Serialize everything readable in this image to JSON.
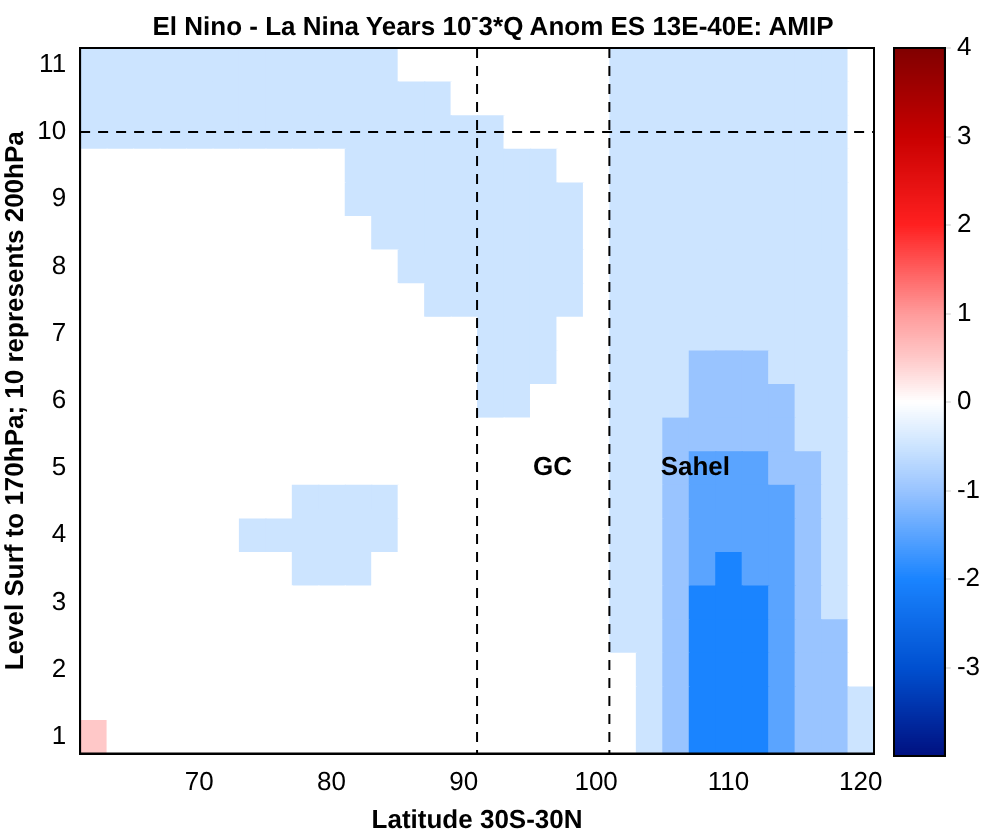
{
  "chart_data": {
    "type": "heatmap",
    "title": "El Nino - La Nina  Years 10$^{-}$3*Q Anom ES 13E-40E: AMIP",
    "xlabel": "Latitude 30S-30N",
    "ylabel": "Level Surf to 170hPa; 10 represents 200hPa",
    "categories": [
      null,
      null,
      null,
      null,
      "70",
      null,
      null,
      null,
      null,
      "80",
      null,
      null,
      null,
      null,
      "90",
      null,
      null,
      null,
      null,
      "100",
      null,
      null,
      null,
      null,
      "110",
      null,
      null,
      null,
      null,
      "120"
    ],
    "y_categories": [
      "11",
      null,
      "10",
      null,
      "9",
      null,
      "8",
      null,
      "7",
      null,
      "6",
      null,
      "5",
      null,
      "4",
      null,
      "3",
      null,
      "2",
      null,
      "1"
    ],
    "clim": [
      -4,
      4
    ],
    "cticks": [
      -3,
      -2,
      -1,
      0,
      1,
      2,
      3,
      4
    ],
    "cells": [
      [
        -0.5,
        -0.5,
        -0.5,
        -0.5,
        -0.5,
        -0.5,
        -0.5,
        -0.5,
        -0.5,
        -0.5,
        -0.5,
        -0.5,
        0,
        0,
        0,
        0,
        0,
        0,
        0,
        0,
        -0.5,
        -0.5,
        -0.5,
        -0.5,
        -0.5,
        -0.5,
        -0.5,
        -0.5,
        -0.5,
        0
      ],
      [
        -0.5,
        -0.5,
        -0.5,
        -0.5,
        -0.5,
        -0.5,
        -0.5,
        -0.5,
        -0.5,
        -0.5,
        -0.5,
        -0.5,
        -0.5,
        -0.5,
        0,
        0,
        0,
        0,
        0,
        0,
        -0.5,
        -0.5,
        -0.5,
        -0.5,
        -0.5,
        -0.5,
        -0.5,
        -0.5,
        -0.5,
        0
      ],
      [
        -0.5,
        -0.5,
        -0.5,
        -0.5,
        -0.5,
        -0.5,
        -0.5,
        -0.5,
        -0.5,
        -0.5,
        -0.5,
        -0.5,
        -0.5,
        -0.5,
        -0.5,
        -0.5,
        0,
        0,
        0,
        0,
        -0.5,
        -0.5,
        -0.5,
        -0.5,
        -0.5,
        -0.5,
        -0.5,
        -0.5,
        -0.5,
        0
      ],
      [
        0,
        0,
        0,
        0,
        0,
        0,
        0,
        0,
        0,
        0,
        -0.5,
        -0.5,
        -0.5,
        -0.5,
        -0.5,
        -0.5,
        -0.5,
        -0.5,
        0,
        0,
        -0.5,
        -0.5,
        -0.5,
        -0.5,
        -0.5,
        -0.5,
        -0.5,
        -0.5,
        -0.5,
        0
      ],
      [
        0,
        0,
        0,
        0,
        0,
        0,
        0,
        0,
        0,
        0,
        -0.5,
        -0.5,
        -0.5,
        -0.5,
        -0.5,
        -0.5,
        -0.5,
        -0.5,
        -0.5,
        0,
        -0.5,
        -0.5,
        -0.5,
        -0.5,
        -0.5,
        -0.5,
        -0.5,
        -0.5,
        -0.5,
        0
      ],
      [
        0,
        0,
        0,
        0,
        0,
        0,
        0,
        0,
        0,
        0,
        0,
        -0.5,
        -0.5,
        -0.5,
        -0.5,
        -0.5,
        -0.5,
        -0.5,
        -0.5,
        0,
        -0.5,
        -0.5,
        -0.5,
        -0.5,
        -0.5,
        -0.5,
        -0.5,
        -0.5,
        -0.5,
        0
      ],
      [
        0,
        0,
        0,
        0,
        0,
        0,
        0,
        0,
        0,
        0,
        0,
        0,
        -0.5,
        -0.5,
        -0.5,
        -0.5,
        -0.5,
        -0.5,
        -0.5,
        0,
        -0.5,
        -0.5,
        -0.5,
        -0.5,
        -0.5,
        -0.5,
        -0.5,
        -0.5,
        -0.5,
        0
      ],
      [
        0,
        0,
        0,
        0,
        0,
        0,
        0,
        0,
        0,
        0,
        0,
        0,
        0,
        -0.5,
        -0.5,
        -0.5,
        -0.5,
        -0.5,
        -0.5,
        0,
        -0.5,
        -0.5,
        -0.5,
        -0.5,
        -0.5,
        -0.5,
        -0.5,
        -0.5,
        -0.5,
        0
      ],
      [
        0,
        0,
        0,
        0,
        0,
        0,
        0,
        0,
        0,
        0,
        0,
        0,
        0,
        0,
        0,
        -0.5,
        -0.5,
        -0.5,
        0,
        0,
        -0.5,
        -0.5,
        -0.5,
        -0.5,
        -0.5,
        -0.5,
        -0.5,
        -0.5,
        -0.5,
        0
      ],
      [
        0,
        0,
        0,
        0,
        0,
        0,
        0,
        0,
        0,
        0,
        0,
        0,
        0,
        0,
        0,
        -0.5,
        -0.5,
        -0.5,
        0,
        0,
        -0.5,
        -0.5,
        -0.5,
        -1,
        -1,
        -1,
        -0.5,
        -0.5,
        -0.5,
        0
      ],
      [
        0,
        0,
        0,
        0,
        0,
        0,
        0,
        0,
        0,
        0,
        0,
        0,
        0,
        0,
        0,
        -0.5,
        -0.5,
        0,
        0,
        0,
        -0.5,
        -0.5,
        -0.5,
        -1,
        -1,
        -1,
        -1,
        -0.5,
        -0.5,
        0
      ],
      [
        0,
        0,
        0,
        0,
        0,
        0,
        0,
        0,
        0,
        0,
        0,
        0,
        0,
        0,
        0,
        0,
        0,
        0,
        0,
        0,
        -0.5,
        -0.5,
        -1,
        -1,
        -1,
        -1,
        -1,
        -0.5,
        -0.5,
        0
      ],
      [
        0,
        0,
        0,
        0,
        0,
        0,
        0,
        0,
        0,
        0,
        0,
        0,
        0,
        0,
        0,
        0,
        0,
        0,
        0,
        0,
        -0.5,
        -0.5,
        -1,
        -1.5,
        -1.5,
        -1.5,
        -1,
        -1,
        -0.5,
        0
      ],
      [
        0,
        0,
        0,
        0,
        0,
        0,
        0,
        0,
        -0.5,
        -0.5,
        -0.5,
        -0.5,
        0,
        0,
        0,
        0,
        0,
        0,
        0,
        0,
        -0.5,
        -0.5,
        -1,
        -1.5,
        -1.5,
        -1.5,
        -1.5,
        -1,
        -0.5,
        0
      ],
      [
        0,
        0,
        0,
        0,
        0,
        0,
        -0.5,
        -0.5,
        -0.5,
        -0.5,
        -0.5,
        -0.5,
        0,
        0,
        0,
        0,
        0,
        0,
        0,
        0,
        -0.5,
        -0.5,
        -1,
        -1.5,
        -1.5,
        -1.5,
        -1.5,
        -1,
        -0.5,
        0
      ],
      [
        0,
        0,
        0,
        0,
        0,
        0,
        0,
        0,
        -0.5,
        -0.5,
        -0.5,
        0,
        0,
        0,
        0,
        0,
        0,
        0,
        0,
        0,
        -0.5,
        -0.5,
        -1,
        -1.5,
        -2,
        -1.5,
        -1.5,
        -1,
        -0.5,
        0
      ],
      [
        0,
        0,
        0,
        0,
        0,
        0,
        0,
        0,
        0,
        0,
        0,
        0,
        0,
        0,
        0,
        0,
        0,
        0,
        0,
        0,
        -0.5,
        -0.5,
        -1,
        -2,
        -2,
        -2,
        -1.5,
        -1,
        -0.5,
        0
      ],
      [
        0,
        0,
        0,
        0,
        0,
        0,
        0,
        0,
        0,
        0,
        0,
        0,
        0,
        0,
        0,
        0,
        0,
        0,
        0,
        0,
        -0.5,
        -0.5,
        -1,
        -2,
        -2,
        -2,
        -1.5,
        -1,
        -1,
        0
      ],
      [
        0,
        0,
        0,
        0,
        0,
        0,
        0,
        0,
        0,
        0,
        0,
        0,
        0,
        0,
        0,
        0,
        0,
        0,
        0,
        0,
        0,
        -0.5,
        -1,
        -2,
        -2,
        -2,
        -1.5,
        -1,
        -1,
        0
      ],
      [
        0,
        0,
        0,
        0,
        0,
        0,
        0,
        0,
        0,
        0,
        0,
        0,
        0,
        0,
        0,
        0,
        0,
        0,
        0,
        0,
        0,
        -0.5,
        -1,
        -2,
        -2,
        -2,
        -1.5,
        -1,
        -1,
        -0.5
      ],
      [
        0.5,
        0,
        0,
        0,
        0,
        0,
        0,
        0,
        0,
        0,
        0,
        0,
        0,
        0,
        0,
        0,
        0,
        0,
        0,
        0,
        0,
        -0.5,
        -1,
        -2,
        -2,
        -2,
        -1.5,
        -1,
        -1,
        -0.5
      ]
    ],
    "ref_lines": [
      {
        "axis": "y",
        "value": "10",
        "color": "#000000",
        "line_style": "dashed"
      }
    ],
    "annotations": [
      "GC",
      "Sahel"
    ]
  }
}
